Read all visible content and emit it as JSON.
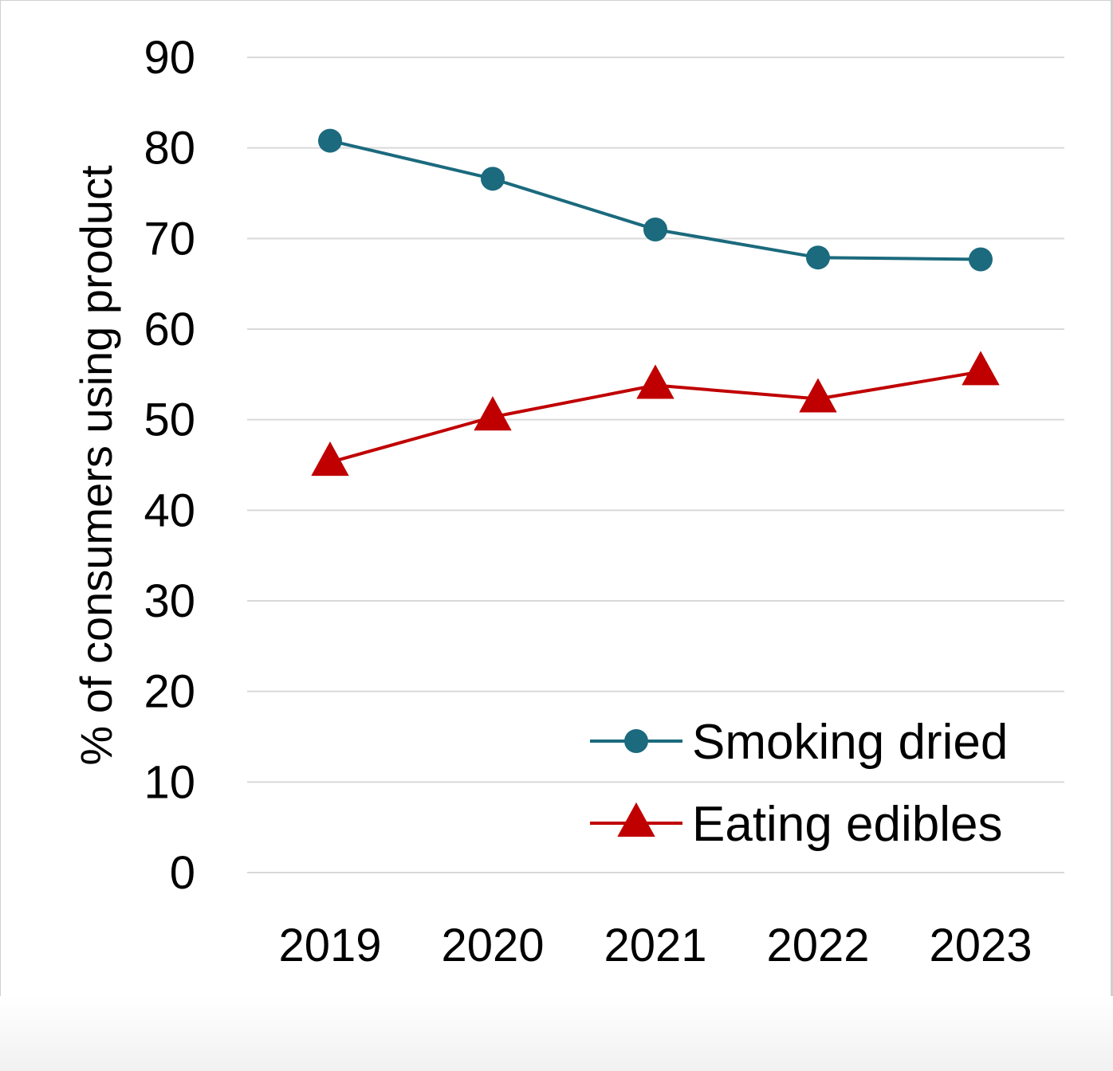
{
  "chart_data": {
    "type": "line",
    "title": "",
    "xlabel": "",
    "ylabel": "% of consumers using product",
    "categories": [
      "2019",
      "2020",
      "2021",
      "2022",
      "2023"
    ],
    "ylim": [
      0,
      90
    ],
    "yticks": [
      0,
      10,
      20,
      30,
      40,
      50,
      60,
      70,
      80,
      90
    ],
    "grid": true,
    "legend_position": "bottom-right",
    "series": [
      {
        "name": "Smoking dried",
        "values": [
          80.8,
          76.6,
          71.0,
          67.9,
          67.7
        ],
        "color": "#1b6a7d",
        "marker": "circle"
      },
      {
        "name": "Eating edibles",
        "values": [
          45.3,
          50.3,
          53.8,
          52.3,
          55.3
        ],
        "color": "#c00000",
        "marker": "triangle"
      }
    ]
  }
}
